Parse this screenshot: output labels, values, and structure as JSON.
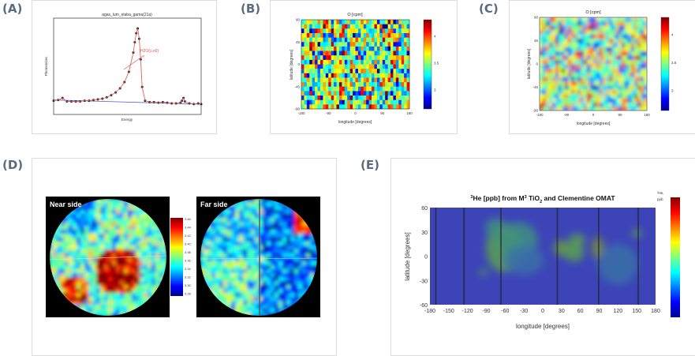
{
  "panels": [
    "(A)",
    "(B)",
    "(C)",
    "(D)",
    "(E)"
  ],
  "colors": {
    "label": "#5a6b80",
    "fit": "#d9534f",
    "baseline": "#5560c8",
    "points": "#222222"
  },
  "chart_data": [
    {
      "type": "line",
      "title": "agas_lum_elaba_gama(21a)",
      "xlabel": "Energy",
      "ylabel": "Photons/sec",
      "annotation": "H2O(s,n0)",
      "x": [
        0,
        3,
        6,
        9,
        12,
        15,
        18,
        21,
        24,
        27,
        30,
        33,
        36,
        39,
        42,
        45,
        48,
        51,
        54,
        55,
        56,
        57,
        58,
        59,
        60,
        62,
        65,
        68,
        71,
        74,
        77,
        80,
        83,
        86,
        87,
        88,
        89,
        92,
        95,
        98,
        100
      ],
      "values": [
        0.2,
        0.21,
        0.24,
        0.19,
        0.19,
        0.19,
        0.19,
        0.2,
        0.2,
        0.21,
        0.22,
        0.23,
        0.25,
        0.28,
        0.32,
        0.38,
        0.47,
        0.62,
        0.9,
        1.05,
        1.18,
        1.25,
        1.1,
        0.8,
        0.4,
        0.2,
        0.18,
        0.18,
        0.17,
        0.18,
        0.17,
        0.16,
        0.16,
        0.17,
        0.2,
        0.24,
        0.19,
        0.16,
        0.15,
        0.16,
        0.15
      ],
      "baseline": [
        0.21,
        0.15
      ]
    },
    {
      "type": "heatmap",
      "title": "O [cpm]",
      "xlabel": "longitude [degrees]",
      "ylabel": "latitude [degrees]",
      "xticks": [
        "-180",
        "-90",
        "0",
        "90",
        "180"
      ],
      "yticks": [
        "90",
        "45",
        "0",
        "-45",
        "-90"
      ],
      "colorbar_ticks": [
        "4",
        "3.5",
        "3"
      ],
      "clim": [
        2.8,
        4.3
      ]
    },
    {
      "type": "heatmap",
      "title": "O [cpm]",
      "xlabel": "longitude [degrees]",
      "ylabel": "latitude [degrees]",
      "xticks": [
        "-180",
        "-90",
        "0",
        "90",
        "180"
      ],
      "yticks": [
        "90",
        "45",
        "0",
        "-45",
        "-90"
      ],
      "colorbar_ticks": [
        "4",
        "3.5",
        "3"
      ],
      "clim": [
        2.8,
        4.3
      ]
    },
    {
      "type": "heatmap",
      "views": [
        "Near side",
        "Far side"
      ],
      "colorbar_ticks": [
        "3.46",
        "3.44",
        "3.42",
        "3.40",
        "3.38",
        "3.36",
        "3.34",
        "3.32",
        "3.30",
        "3.28"
      ],
      "clim": [
        3.27,
        3.47
      ]
    },
    {
      "type": "heatmap",
      "title_parts": {
        "sup1": "3",
        "a": "He [ppb] from M",
        "sup2": "3",
        "b": " TiO",
        "sub": "2",
        "c": " and Clementine OMAT"
      },
      "xlabel": "longitude [degrees]",
      "ylabel": "latitude [degrees]",
      "xticks": [
        "-180",
        "-150",
        "-120",
        "-90",
        "-60",
        "-30",
        "0",
        "30",
        "60",
        "90",
        "120",
        "150",
        "180"
      ],
      "yticks": [
        "60",
        "30",
        "0",
        "-30",
        "-60"
      ],
      "colorbar_label": [
        "³He,",
        "ppb"
      ]
    }
  ]
}
